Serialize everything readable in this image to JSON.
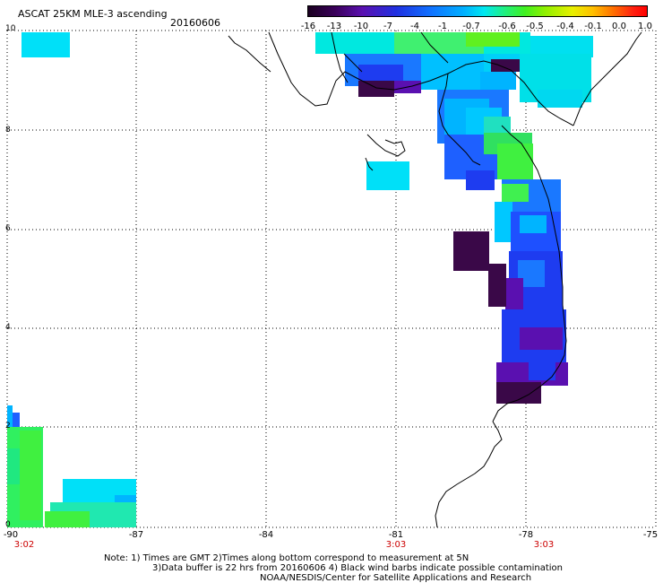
{
  "header": {
    "title": "ASCAT 25KM MLE-3 ascending",
    "date": "20160606"
  },
  "colorbar": {
    "labels": [
      "-16",
      "-13",
      "-10",
      "-7",
      "-4",
      "-1",
      "-0.7",
      "-0.6",
      "-0.5",
      "-0.4",
      "-0.1",
      "0.0",
      "1.0"
    ]
  },
  "axes": {
    "y_ticks": [
      "10",
      "8",
      "6",
      "4",
      "2",
      "0"
    ],
    "x_ticks": [
      "-90",
      "-87",
      "-84",
      "-81",
      "-78",
      "-75"
    ],
    "x_times": [
      "3:02",
      "3:03",
      "3:03"
    ]
  },
  "notes": {
    "line1": "Note: 1) Times are GMT 2)Times along bottom correspond to measurement at 5N",
    "line2": "3)Data buffer is 22 hrs from 20160606 4) Black wind barbs indicate possible contamination",
    "line3": "NOAA/NESDIS/Center for Satellite Applications and Research"
  },
  "colors": {
    "deep_purple": "#3a0848",
    "violet": "#5a10b0",
    "blue": "#1e3cf0",
    "mid_blue": "#1a78ff",
    "sky": "#00b4ff",
    "cyan": "#00e0f8",
    "aqua": "#00f0c8",
    "green": "#30f060",
    "lime": "#50f020",
    "time_red": "#cc0000"
  }
}
